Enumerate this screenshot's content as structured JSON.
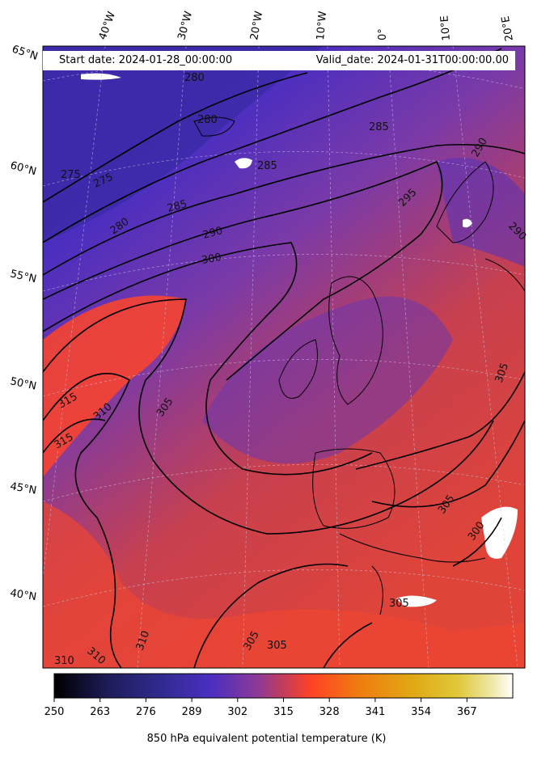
{
  "header": {
    "start": "Start date: 2024-01-28_00:00:00",
    "valid": "Valid_date: 2024-01-31T00:00:00.00"
  },
  "lon_labels": [
    "40°W",
    "30°W",
    "20°W",
    "10°W",
    "0°",
    "10°E",
    "20°E"
  ],
  "lat_labels": [
    "65°N",
    "60°N",
    "55°N",
    "50°N",
    "45°N",
    "40°N"
  ],
  "contour_labels": [
    "280",
    "280",
    "275",
    "275",
    "280",
    "285",
    "285",
    "285",
    "290",
    "290",
    "290",
    "295",
    "300",
    "305",
    "305",
    "305",
    "300",
    "305",
    "310",
    "315",
    "315",
    "310",
    "310",
    "305",
    "305",
    "310"
  ],
  "colorbar": {
    "ticks": [
      "250",
      "263",
      "276",
      "289",
      "302",
      "315",
      "328",
      "341",
      "354",
      "367"
    ],
    "title": "850 hPa equivalent potential temperature (K)",
    "colors": [
      "#000000",
      "#1e1c5a",
      "#2e2a8a",
      "#4a2ec0",
      "#7a3aa8",
      "#c23e5a",
      "#ff4226",
      "#f07a10",
      "#e0a814",
      "#e0c838",
      "#f0eab0",
      "#ffffff"
    ]
  }
}
